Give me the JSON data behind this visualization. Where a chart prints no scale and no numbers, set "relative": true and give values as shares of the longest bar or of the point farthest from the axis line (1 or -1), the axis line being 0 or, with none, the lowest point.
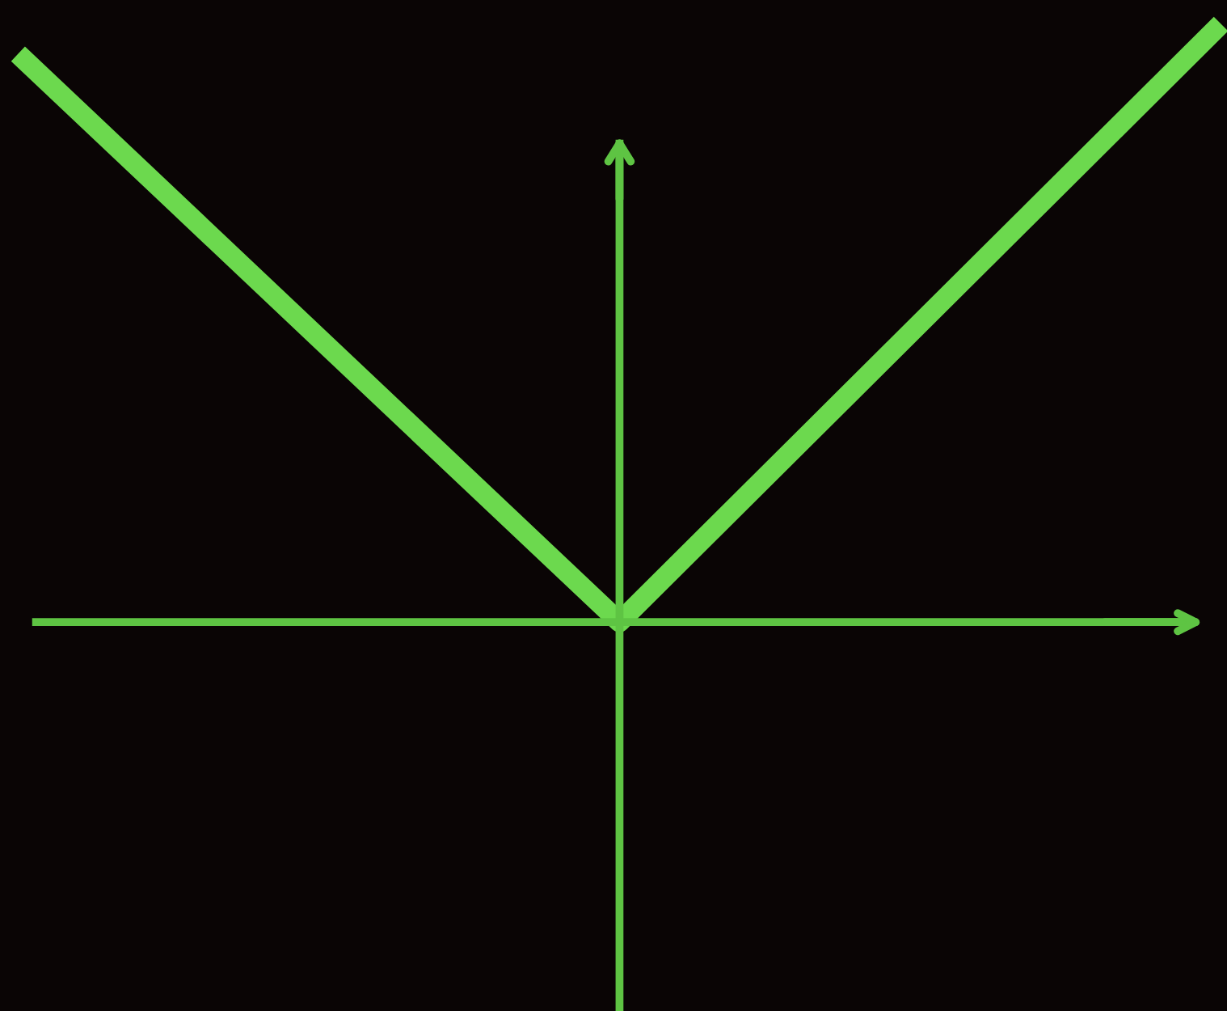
{
  "chart_data": {
    "type": "line",
    "relative": true,
    "categories": [
      null,
      null,
      null
    ],
    "series": [
      {
        "color": "#6cd94e",
        "values": [
          0.95,
          0,
          1
        ]
      }
    ]
  }
}
